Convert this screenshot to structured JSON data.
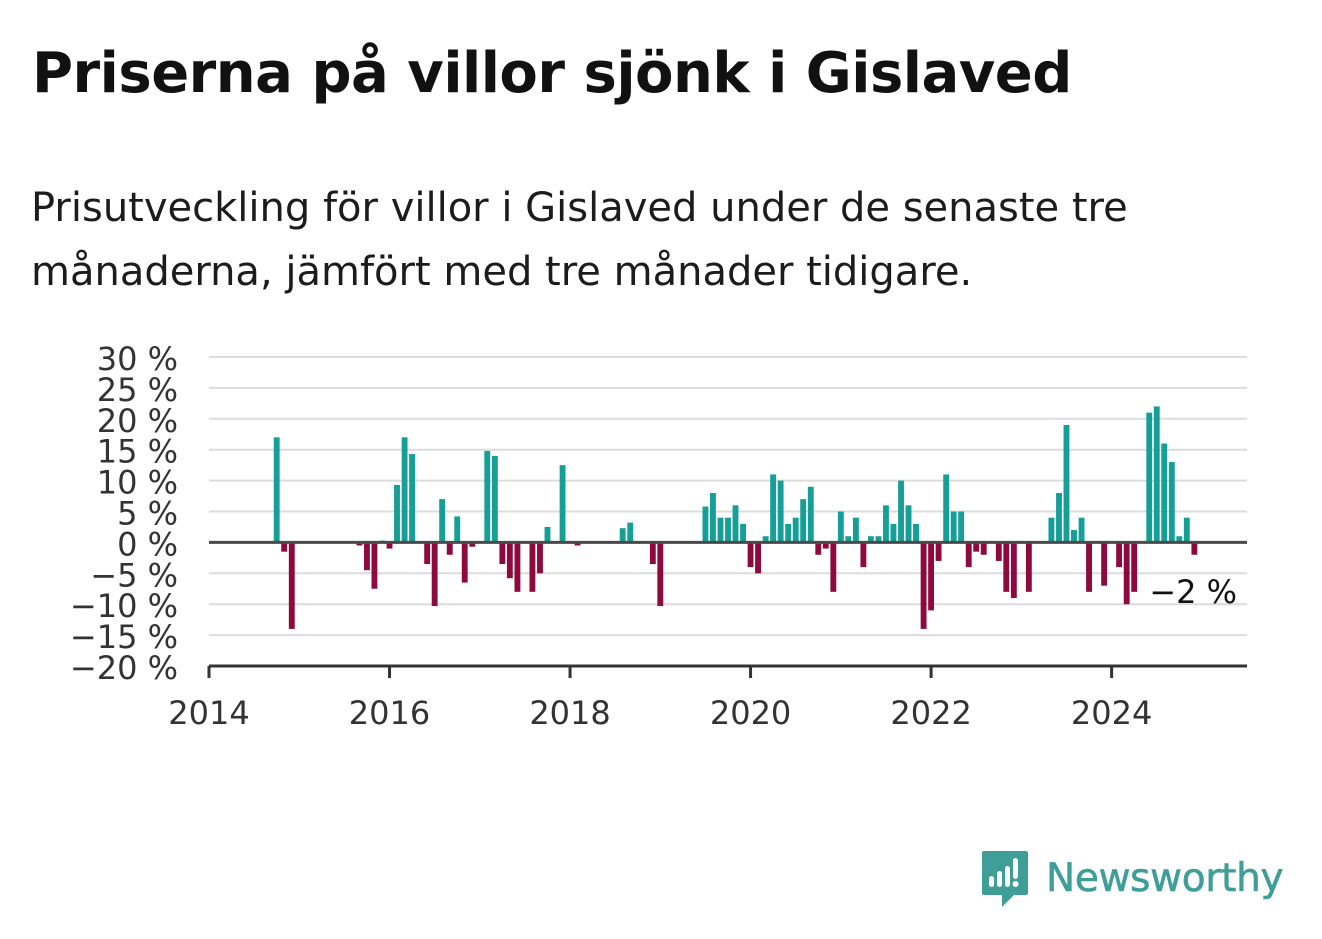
{
  "title": "Priserna på villor sjönk i Gislaved",
  "subtitle": "Prisutveckling för villor i Gislaved under de senaste tre månaderna, jämfört med tre månader tidigare.",
  "logo": {
    "text": "Newsworthy",
    "icon": "newsworthy-logo-icon",
    "color": "#3f9e98"
  },
  "chart_data": {
    "type": "bar",
    "x_unit": "fractional year (monthly bars)",
    "y_unit": "%",
    "ylim": [
      -20,
      30
    ],
    "xlim": [
      2014,
      2025.5
    ],
    "y_ticks": [
      30,
      25,
      20,
      15,
      10,
      5,
      0,
      -5,
      -10,
      -15,
      -20
    ],
    "y_tick_labels": [
      "30 %",
      "25 %",
      "20 %",
      "15 %",
      "10 %",
      "5 %",
      "0 %",
      "−5 %",
      "−10 %",
      "−15 %",
      "−20 %"
    ],
    "x_ticks": [
      2014,
      2016,
      2018,
      2020,
      2022,
      2024
    ],
    "x_tick_labels": [
      "2014",
      "2016",
      "2018",
      "2020",
      "2022",
      "2024"
    ],
    "grid": true,
    "colors": {
      "positive": "#169f96",
      "negative": "#8e0a3e",
      "zero_line": "#4a4a4a",
      "grid": "#dcdcdc",
      "axis": "#333333"
    },
    "annotation": {
      "text": "−2 %",
      "x": 2024.917,
      "y": -2
    },
    "x": [
      2014.75,
      2014.833,
      2014.917,
      2015.667,
      2015.75,
      2015.833,
      2015.917,
      2016.0,
      2016.083,
      2016.167,
      2016.25,
      2016.333,
      2016.417,
      2016.5,
      2016.583,
      2016.667,
      2016.75,
      2016.833,
      2016.917,
      2017.0,
      2017.083,
      2017.167,
      2017.25,
      2017.333,
      2017.417,
      2017.5,
      2017.583,
      2017.667,
      2017.75,
      2017.833,
      2017.917,
      2018.0,
      2018.083,
      2018.333,
      2018.583,
      2018.667,
      2018.75,
      2018.917,
      2019.0,
      2019.5,
      2019.583,
      2019.667,
      2019.75,
      2019.833,
      2019.917,
      2020.0,
      2020.083,
      2020.167,
      2020.25,
      2020.333,
      2020.417,
      2020.5,
      2020.583,
      2020.667,
      2020.75,
      2020.833,
      2020.917,
      2021.0,
      2021.083,
      2021.167,
      2021.25,
      2021.333,
      2021.417,
      2021.5,
      2021.583,
      2021.667,
      2021.75,
      2021.833,
      2021.917,
      2022.0,
      2022.083,
      2022.167,
      2022.25,
      2022.333,
      2022.417,
      2022.5,
      2022.583,
      2022.667,
      2022.75,
      2022.833,
      2022.917,
      2023.0,
      2023.083,
      2023.333,
      2023.417,
      2023.5,
      2023.583,
      2023.667,
      2023.75,
      2023.833,
      2023.917,
      2024.0,
      2024.083,
      2024.167,
      2024.25,
      2024.333,
      2024.417,
      2024.5,
      2024.583,
      2024.667,
      2024.75,
      2024.833,
      2024.917
    ],
    "values": [
      17,
      -1.5,
      -14,
      -0.5,
      -4.5,
      -7.5,
      0.3,
      -1,
      9.3,
      17,
      14.3,
      0,
      -3.5,
      -10.3,
      7,
      -2,
      4.2,
      -6.5,
      -0.7,
      0,
      14.8,
      14,
      -3.5,
      -5.8,
      -8,
      0,
      -8,
      -5,
      2.5,
      0,
      12.5,
      0,
      -0.5,
      0,
      2.3,
      3.2,
      0,
      -3.5,
      -10.3,
      5.8,
      8,
      4,
      4,
      6,
      3,
      -4,
      -5,
      1,
      11,
      10,
      3,
      4,
      7,
      9,
      -2,
      -1,
      -8,
      5,
      1,
      4,
      -4,
      1,
      1,
      6,
      3,
      10,
      6,
      3,
      -14,
      -11,
      -3,
      11,
      5,
      5,
      -4,
      -1.5,
      -2,
      0,
      -3,
      -8,
      -9,
      0,
      -8,
      4,
      8,
      19,
      2,
      4,
      -8,
      0,
      -7,
      0,
      -4,
      -10,
      -8,
      0,
      21,
      22,
      16,
      13,
      1,
      4,
      -2
    ]
  }
}
